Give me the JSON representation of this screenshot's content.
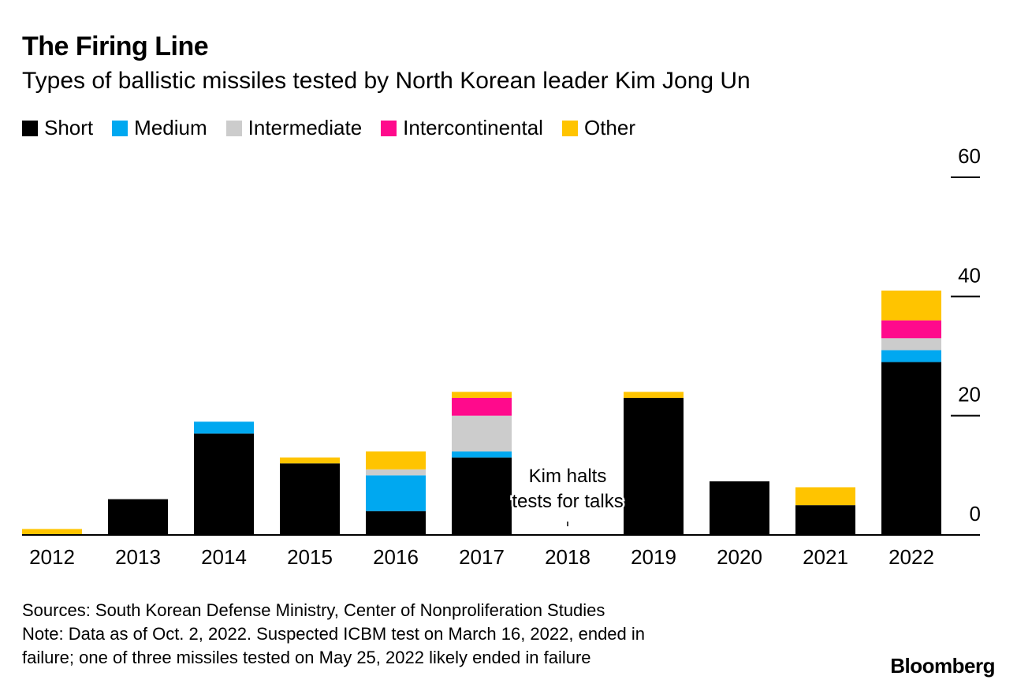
{
  "chart_data": {
    "type": "bar",
    "stacked": true,
    "title": "The Firing Line",
    "subtitle": "Types of ballistic missiles tested by North Korean leader Kim Jong Un",
    "categories": [
      "2012",
      "2013",
      "2014",
      "2015",
      "2016",
      "2017",
      "2018",
      "2019",
      "2020",
      "2021",
      "2022"
    ],
    "series": [
      {
        "name": "Short",
        "color": "#000000",
        "values": [
          0,
          6,
          17,
          12,
          4,
          13,
          0,
          23,
          9,
          5,
          29
        ]
      },
      {
        "name": "Medium",
        "color": "#00a8f0",
        "values": [
          0,
          0,
          2,
          0,
          6,
          1,
          0,
          0,
          0,
          0,
          2
        ]
      },
      {
        "name": "Intermediate",
        "color": "#cccccc",
        "values": [
          0,
          0,
          0,
          0,
          1,
          6,
          0,
          0,
          0,
          0,
          2
        ]
      },
      {
        "name": "Intercontinental",
        "color": "#ff0a8c",
        "values": [
          0,
          0,
          0,
          0,
          0,
          3,
          0,
          0,
          0,
          0,
          3
        ]
      },
      {
        "name": "Other",
        "color": "#ffc400",
        "values": [
          1,
          0,
          0,
          1,
          3,
          1,
          0,
          1,
          0,
          3,
          5
        ]
      }
    ],
    "ylim": [
      0,
      60
    ],
    "yticks": [
      0,
      20,
      40,
      60
    ],
    "annotation": {
      "category": "2018",
      "lines": [
        "Kim halts",
        "tests for talks"
      ]
    },
    "legend_position": "top-left"
  },
  "footer": {
    "sources": "Sources: South Korean Defense Ministry, Center of Nonproliferation Studies",
    "note_line1": "Note: Data as of Oct. 2, 2022. Suspected ICBM test on March 16, 2022, ended in",
    "note_line2": "failure; one of three missiles tested on May 25, 2022 likely ended in failure"
  },
  "brand": "Bloomberg"
}
